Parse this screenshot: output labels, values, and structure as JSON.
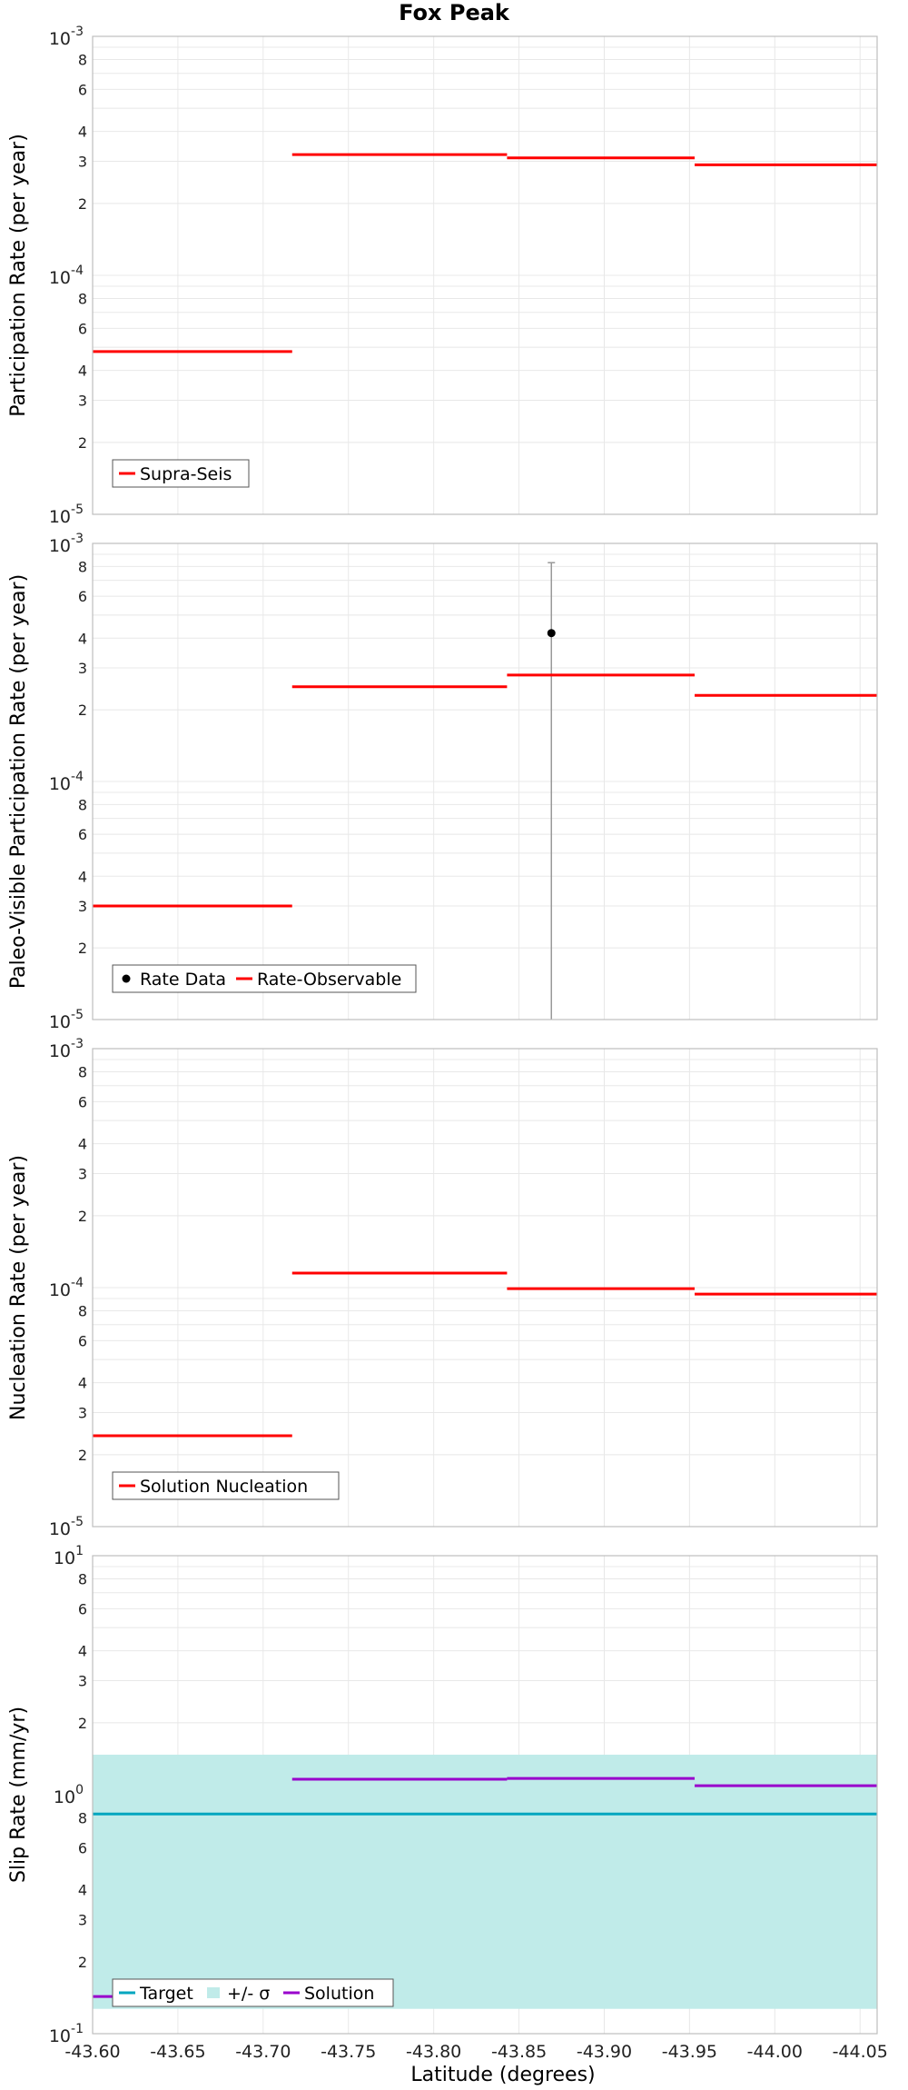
{
  "title": "Fox Peak",
  "colors": {
    "supra": "#ff0000",
    "target": "#00a6bf",
    "band": "#c0ebe9",
    "solution": "#9900cc",
    "data_point": "#000000",
    "error_bar": "#999999"
  },
  "chart_data": [
    {
      "type": "line",
      "title": "Fox Peak",
      "ylabel": "Participation Rate (per year)",
      "xlabel": "",
      "yscale": "log",
      "ylim": [
        1e-05,
        0.001
      ],
      "xlim": [
        -43.6,
        -44.06
      ],
      "legend": "bottom-left",
      "series": [
        {
          "name": "Supra-Seis",
          "kind": "step",
          "color": "#ff0000",
          "segments": [
            {
              "x0": -43.6,
              "x1": -43.717,
              "y": 4.8e-05
            },
            {
              "x0": -43.717,
              "x1": -43.843,
              "y": 0.00032
            },
            {
              "x0": -43.843,
              "x1": -43.953,
              "y": 0.00031
            },
            {
              "x0": -43.953,
              "x1": -44.06,
              "y": 0.00029
            }
          ]
        }
      ]
    },
    {
      "type": "line",
      "ylabel": "Paleo-Visible Participation Rate (per year)",
      "xlabel": "",
      "yscale": "log",
      "ylim": [
        1e-05,
        0.001
      ],
      "xlim": [
        -43.6,
        -44.06
      ],
      "legend": "bottom-left",
      "series": [
        {
          "name": "Rate Data",
          "kind": "point",
          "color": "#000000",
          "points": [
            {
              "x": -43.869,
              "y": 0.00042,
              "ylow": 1e-05,
              "yhigh": 0.00083
            }
          ]
        },
        {
          "name": "Rate-Observable",
          "kind": "step",
          "color": "#ff0000",
          "segments": [
            {
              "x0": -43.6,
              "x1": -43.717,
              "y": 3e-05
            },
            {
              "x0": -43.717,
              "x1": -43.843,
              "y": 0.00025
            },
            {
              "x0": -43.843,
              "x1": -43.953,
              "y": 0.00028
            },
            {
              "x0": -43.953,
              "x1": -44.06,
              "y": 0.00023
            }
          ]
        }
      ]
    },
    {
      "type": "line",
      "ylabel": "Nucleation Rate (per year)",
      "xlabel": "",
      "yscale": "log",
      "ylim": [
        1e-05,
        0.001
      ],
      "xlim": [
        -43.6,
        -44.06
      ],
      "legend": "bottom-left",
      "series": [
        {
          "name": "Solution Nucleation",
          "kind": "step",
          "color": "#ff0000",
          "segments": [
            {
              "x0": -43.6,
              "x1": -43.717,
              "y": 2.4e-05
            },
            {
              "x0": -43.717,
              "x1": -43.843,
              "y": 0.000115
            },
            {
              "x0": -43.843,
              "x1": -43.953,
              "y": 9.9e-05
            },
            {
              "x0": -43.953,
              "x1": -44.06,
              "y": 9.4e-05
            }
          ]
        }
      ]
    },
    {
      "type": "line",
      "ylabel": "Slip Rate (mm/yr)",
      "xlabel": "Latitude (degrees)",
      "yscale": "log",
      "ylim": [
        0.1,
        10
      ],
      "xlim": [
        -43.6,
        -44.06
      ],
      "legend": "bottom-left",
      "series": [
        {
          "name": "Target",
          "kind": "step",
          "color": "#00a6bf",
          "segments": [
            {
              "x0": -43.6,
              "x1": -44.06,
              "y": 0.83
            }
          ]
        },
        {
          "name": "+/- σ",
          "kind": "band",
          "color": "#c0ebe9",
          "band": {
            "x0": -43.6,
            "x1": -44.06,
            "ylow": 0.127,
            "yhigh": 1.47
          }
        },
        {
          "name": "Solution",
          "kind": "step",
          "color": "#9900cc",
          "segments": [
            {
              "x0": -43.6,
              "x1": -43.717,
              "y": 0.143
            },
            {
              "x0": -43.717,
              "x1": -43.843,
              "y": 1.16
            },
            {
              "x0": -43.843,
              "x1": -43.953,
              "y": 1.17
            },
            {
              "x0": -43.953,
              "x1": -44.06,
              "y": 1.09
            }
          ]
        }
      ]
    }
  ],
  "x_ticks": [
    "-43.60",
    "-43.65",
    "-43.70",
    "-43.75",
    "-43.80",
    "-43.85",
    "-43.90",
    "-43.95",
    "-44.00",
    "-44.05"
  ],
  "x_tick_values": [
    -43.6,
    -43.65,
    -43.7,
    -43.75,
    -43.8,
    -43.85,
    -43.9,
    -43.95,
    -44.0,
    -44.05
  ],
  "y_ticks": {
    "panel_1_2_3": {
      "major": [
        {
          "base": "10",
          "exp": "-5"
        },
        {
          "base": "10",
          "exp": "-4"
        },
        {
          "base": "10",
          "exp": "-3"
        }
      ],
      "minor": [
        "2",
        "3",
        "4",
        "6",
        "8"
      ]
    },
    "panel_4": {
      "major": [
        {
          "base": "10",
          "exp": "-1"
        },
        {
          "base": "10",
          "exp": "0"
        },
        {
          "base": "10",
          "exp": "1"
        }
      ],
      "minor": [
        "2",
        "3",
        "4",
        "6",
        "8"
      ]
    }
  }
}
